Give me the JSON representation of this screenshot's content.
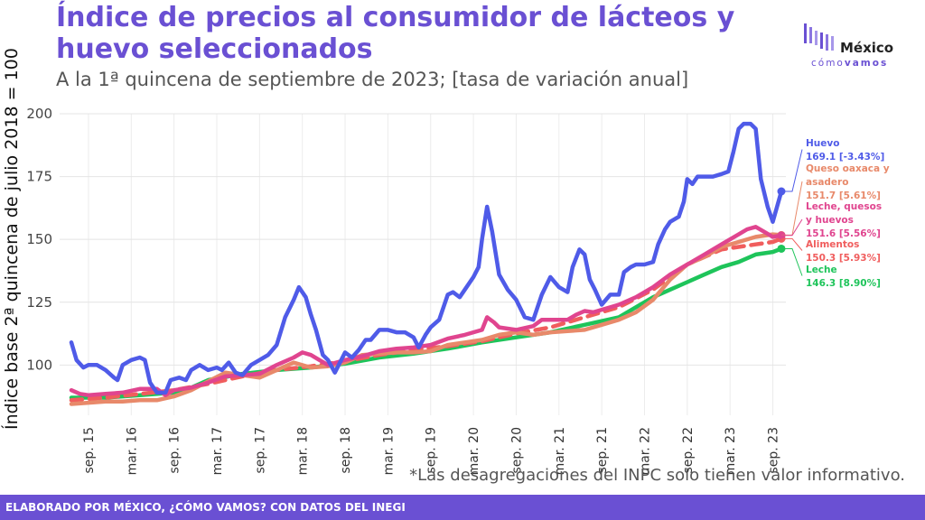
{
  "header": {
    "title": "Índice de precios al consumidor de lácteos y huevo seleccionados",
    "subtitle": "A la 1ª quincena de septiembre de 2023; [tasa de variación anual]"
  },
  "logo": {
    "top": "México",
    "bottom_a": "cómo",
    "bottom_b": "vamos"
  },
  "footnote": "*Las desagregaciones del INPC solo tienen valor informativo.",
  "footer": {
    "text": "ELABORADO POR MÉXICO, ¿CÓMO VAMOS? CON DATOS DEL INEGI"
  },
  "colors": {
    "accent": "#6a50d3",
    "huevo": "#4f5be8",
    "queso": "#e8896a",
    "leche_quesos": "#e0458f",
    "alimentos": "#f05d5d",
    "leche": "#1ec45a"
  },
  "chart_data": {
    "type": "line",
    "ylabel": "Índice base 2ª quincena de julio 2018 = 100",
    "ylim": [
      80,
      200
    ],
    "yticks": [
      100,
      125,
      150,
      175,
      200
    ],
    "xtick_labels": [
      "sep. 15",
      "mar. 16",
      "sep. 16",
      "mar. 17",
      "sep. 17",
      "mar. 18",
      "sep. 18",
      "mar. 19",
      "sep. 19",
      "mar. 20",
      "sep. 20",
      "mar. 21",
      "sep. 21",
      "mar. 22",
      "sep. 22",
      "mar. 23",
      "sep. 23"
    ],
    "grid": true,
    "series": [
      {
        "name": "Huevo",
        "key": "huevo",
        "style": "solid",
        "label_lines": [
          "Huevo",
          "169.1 [-3.43%]"
        ],
        "last": 169.1,
        "points": [
          [
            0,
            109
          ],
          [
            0.3,
            102
          ],
          [
            0.7,
            99
          ],
          [
            1,
            100
          ],
          [
            1.5,
            100
          ],
          [
            2,
            98
          ],
          [
            2.5,
            95
          ],
          [
            2.7,
            94
          ],
          [
            3,
            100
          ],
          [
            3.5,
            102
          ],
          [
            4,
            103
          ],
          [
            4.3,
            102
          ],
          [
            4.6,
            93
          ],
          [
            5,
            89
          ],
          [
            5.5,
            89
          ],
          [
            5.8,
            94
          ],
          [
            6.3,
            95
          ],
          [
            6.7,
            94
          ],
          [
            7,
            98
          ],
          [
            7.5,
            100
          ],
          [
            8,
            98
          ],
          [
            8.5,
            99
          ],
          [
            8.8,
            98
          ],
          [
            9.2,
            101
          ],
          [
            9.6,
            97
          ],
          [
            10,
            96
          ],
          [
            10.5,
            100
          ],
          [
            11,
            102
          ],
          [
            11.5,
            104
          ],
          [
            12,
            108
          ],
          [
            12.5,
            119
          ],
          [
            13,
            126
          ],
          [
            13.3,
            131
          ],
          [
            13.7,
            127
          ],
          [
            14,
            120
          ],
          [
            14.3,
            114
          ],
          [
            14.7,
            104
          ],
          [
            15,
            102
          ],
          [
            15.4,
            97
          ],
          [
            16,
            105
          ],
          [
            16.4,
            103
          ],
          [
            16.8,
            106
          ],
          [
            17.2,
            110
          ],
          [
            17.5,
            110
          ],
          [
            18,
            114
          ],
          [
            18.5,
            114
          ],
          [
            19,
            113
          ],
          [
            19.5,
            113
          ],
          [
            20,
            111
          ],
          [
            20.3,
            107
          ],
          [
            20.7,
            112
          ],
          [
            21,
            115
          ],
          [
            21.5,
            118
          ],
          [
            22,
            128
          ],
          [
            22.3,
            129
          ],
          [
            22.7,
            127
          ],
          [
            23,
            130
          ],
          [
            23.5,
            135
          ],
          [
            23.8,
            139
          ],
          [
            24,
            150
          ],
          [
            24.3,
            163
          ],
          [
            24.6,
            153
          ],
          [
            25,
            136
          ],
          [
            25.5,
            130
          ],
          [
            26,
            126
          ],
          [
            26.5,
            119
          ],
          [
            27,
            118
          ],
          [
            27.5,
            128
          ],
          [
            28,
            135
          ],
          [
            28.5,
            131
          ],
          [
            29,
            129
          ],
          [
            29.3,
            139
          ],
          [
            29.7,
            146
          ],
          [
            30,
            144
          ],
          [
            30.3,
            134
          ],
          [
            30.6,
            130
          ],
          [
            31,
            124
          ],
          [
            31.5,
            128
          ],
          [
            32,
            128
          ],
          [
            32.3,
            137
          ],
          [
            32.7,
            139
          ],
          [
            33,
            140
          ],
          [
            33.5,
            140
          ],
          [
            34,
            141
          ],
          [
            34.3,
            148
          ],
          [
            34.7,
            154
          ],
          [
            35,
            157
          ],
          [
            35.5,
            159
          ],
          [
            35.8,
            165
          ],
          [
            36,
            174
          ],
          [
            36.3,
            172
          ],
          [
            36.6,
            175
          ],
          [
            37,
            175
          ],
          [
            37.5,
            175
          ],
          [
            38,
            176
          ],
          [
            38.4,
            177
          ],
          [
            38.7,
            185
          ],
          [
            39,
            194
          ],
          [
            39.3,
            196
          ],
          [
            39.7,
            196
          ],
          [
            40,
            194
          ],
          [
            40.3,
            174
          ],
          [
            40.7,
            163
          ],
          [
            41,
            157
          ],
          [
            41.5,
            169.1
          ]
        ]
      },
      {
        "name": "Queso oaxaca y asadero",
        "key": "queso",
        "style": "solid",
        "label_lines": [
          "Queso oaxaca y",
          "asadero",
          "151.7 [5.61%]"
        ],
        "last": 151.7,
        "points": [
          [
            0,
            84.5
          ],
          [
            1,
            85
          ],
          [
            2,
            85.5
          ],
          [
            3,
            85.5
          ],
          [
            4,
            86
          ],
          [
            5,
            86
          ],
          [
            6,
            87.5
          ],
          [
            7,
            90
          ],
          [
            8,
            93.5
          ],
          [
            9,
            97
          ],
          [
            10,
            96
          ],
          [
            11,
            95
          ],
          [
            12,
            98
          ],
          [
            13,
            101
          ],
          [
            14,
            99
          ],
          [
            15,
            99.5
          ],
          [
            16,
            101
          ],
          [
            17,
            104
          ],
          [
            18,
            104.5
          ],
          [
            19,
            105
          ],
          [
            20,
            105
          ],
          [
            21,
            105.5
          ],
          [
            22,
            108
          ],
          [
            23,
            109
          ],
          [
            24,
            110
          ],
          [
            25,
            112
          ],
          [
            26,
            113
          ],
          [
            27,
            112
          ],
          [
            28,
            113
          ],
          [
            29,
            113.5
          ],
          [
            30,
            114
          ],
          [
            31,
            116
          ],
          [
            32,
            118
          ],
          [
            33,
            121
          ],
          [
            34,
            126
          ],
          [
            35,
            134
          ],
          [
            36,
            140
          ],
          [
            37,
            143
          ],
          [
            38,
            147
          ],
          [
            39,
            149
          ],
          [
            40,
            151
          ],
          [
            41,
            152
          ],
          [
            41.5,
            151.7
          ]
        ]
      },
      {
        "name": "Leche, quesos y huevos",
        "key": "leche_quesos",
        "style": "solid",
        "label_lines": [
          "Leche, quesos",
          "y huevos",
          "151.6 [5.56%]"
        ],
        "last": 151.6,
        "points": [
          [
            0,
            90
          ],
          [
            0.5,
            88.5
          ],
          [
            1,
            88
          ],
          [
            2,
            88.5
          ],
          [
            3,
            89
          ],
          [
            4,
            90.5
          ],
          [
            5,
            90.5
          ],
          [
            5.5,
            88
          ],
          [
            6,
            90
          ],
          [
            7,
            91
          ],
          [
            8,
            93
          ],
          [
            9,
            95.5
          ],
          [
            10,
            96
          ],
          [
            11,
            96.5
          ],
          [
            12,
            100
          ],
          [
            13,
            103
          ],
          [
            13.5,
            105
          ],
          [
            14,
            104
          ],
          [
            14.5,
            102
          ],
          [
            15,
            100
          ],
          [
            16,
            102
          ],
          [
            17,
            103.5
          ],
          [
            18,
            105.5
          ],
          [
            19,
            106.5
          ],
          [
            20,
            107
          ],
          [
            21,
            108
          ],
          [
            22,
            110.5
          ],
          [
            23,
            112
          ],
          [
            24,
            114
          ],
          [
            24.3,
            119
          ],
          [
            24.7,
            117
          ],
          [
            25,
            115
          ],
          [
            26,
            114
          ],
          [
            27,
            115.5
          ],
          [
            27.5,
            118
          ],
          [
            28,
            118
          ],
          [
            29,
            118
          ],
          [
            29.5,
            120
          ],
          [
            30,
            121.5
          ],
          [
            30.5,
            121
          ],
          [
            31,
            122
          ],
          [
            32,
            124
          ],
          [
            33,
            127
          ],
          [
            34,
            131
          ],
          [
            35,
            136
          ],
          [
            36,
            140
          ],
          [
            37,
            144
          ],
          [
            38,
            148
          ],
          [
            39,
            152
          ],
          [
            39.5,
            154
          ],
          [
            40,
            155
          ],
          [
            40.5,
            153
          ],
          [
            41,
            151
          ],
          [
            41.5,
            151.6
          ]
        ]
      },
      {
        "name": "Alimentos",
        "key": "alimentos",
        "style": "dashed",
        "label_lines": [
          "Alimentos",
          "150.3 [5.93%]"
        ],
        "last": 150.3,
        "points": [
          [
            0,
            86
          ],
          [
            2,
            87
          ],
          [
            4,
            88.5
          ],
          [
            6,
            90
          ],
          [
            8,
            92.5
          ],
          [
            10,
            95.5
          ],
          [
            12,
            98
          ],
          [
            14,
            99.5
          ],
          [
            16,
            101.5
          ],
          [
            18,
            104
          ],
          [
            20,
            106
          ],
          [
            22,
            107.5
          ],
          [
            24,
            109.5
          ],
          [
            26,
            112.5
          ],
          [
            28,
            115
          ],
          [
            30,
            119
          ],
          [
            32,
            123
          ],
          [
            34,
            130
          ],
          [
            36,
            140
          ],
          [
            38,
            146
          ],
          [
            40,
            148
          ],
          [
            41,
            149
          ],
          [
            41.5,
            150.3
          ]
        ]
      },
      {
        "name": "Leche",
        "key": "leche",
        "style": "solid",
        "label_lines": [
          "Leche",
          "146.3 [8.90%]"
        ],
        "last": 146.3,
        "points": [
          [
            0,
            87
          ],
          [
            2,
            87
          ],
          [
            4,
            88
          ],
          [
            6,
            89
          ],
          [
            7,
            91
          ],
          [
            8,
            94
          ],
          [
            10,
            96.5
          ],
          [
            12,
            98
          ],
          [
            14,
            99
          ],
          [
            16,
            100.5
          ],
          [
            18,
            103
          ],
          [
            20,
            104.5
          ],
          [
            22,
            106.5
          ],
          [
            24,
            109
          ],
          [
            26,
            111
          ],
          [
            28,
            113
          ],
          [
            30,
            116
          ],
          [
            32,
            119
          ],
          [
            33,
            123
          ],
          [
            34,
            127
          ],
          [
            35,
            130
          ],
          [
            36,
            133
          ],
          [
            37,
            136
          ],
          [
            38,
            139
          ],
          [
            39,
            141
          ],
          [
            40,
            144
          ],
          [
            41,
            145
          ],
          [
            41.5,
            146.3
          ]
        ]
      }
    ]
  }
}
